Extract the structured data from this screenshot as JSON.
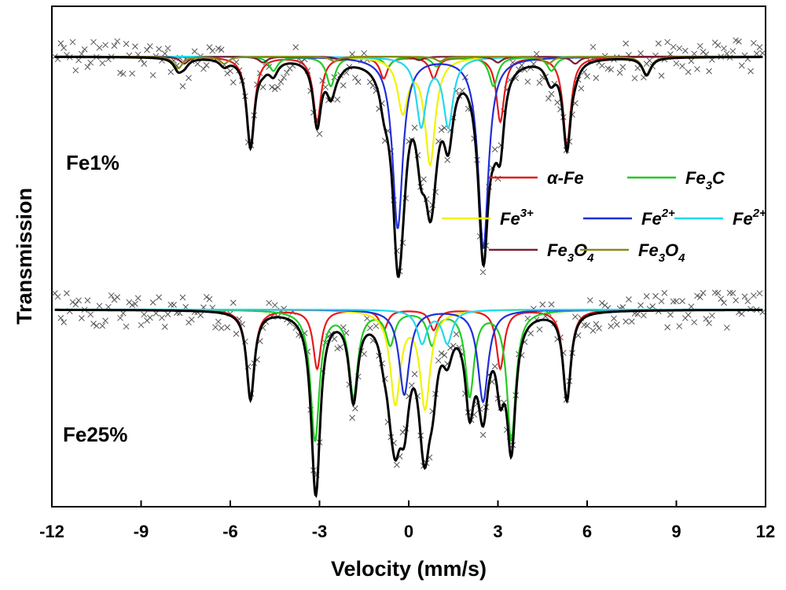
{
  "chart_data": {
    "type": "line",
    "xlabel": "Velocity (mm/s)",
    "ylabel": "Transmission",
    "xlim": [
      -12,
      12
    ],
    "xticks": [
      -12,
      -9,
      -6,
      -3,
      0,
      3,
      6,
      9,
      12
    ],
    "xtick_labels": [
      "-12",
      "-9",
      "-6",
      "-3",
      "0",
      "3",
      "6",
      "9",
      "12"
    ],
    "grid": false,
    "legend_placement": "center-right",
    "legend": [
      {
        "label": "α-Fe",
        "color": "#e41a1c"
      },
      {
        "label": "Fe3C",
        "color": "#22cc22"
      },
      {
        "label": "Fe3+",
        "color": "#f2f200"
      },
      {
        "label": "Fe2+",
        "color": "#1f2fd8"
      },
      {
        "label": "Fe2+",
        "color": "#22d8ee"
      },
      {
        "label": "Fe3O4",
        "color": "#7a1f2f"
      },
      {
        "label": "Fe3O4",
        "color": "#8a8a1a"
      }
    ],
    "legend_display": [
      {
        "main": "α-Fe",
        "sub": "",
        "main2": "",
        "sup": ""
      },
      {
        "main": "Fe",
        "sub": "3",
        "main2": "C",
        "sup": ""
      },
      {
        "main": "Fe",
        "sub": "",
        "main2": "",
        "sup": "3+"
      },
      {
        "main": "Fe",
        "sub": "",
        "main2": "",
        "sup": "2+"
      },
      {
        "main": "Fe",
        "sub": "",
        "main2": "",
        "sup": "2+"
      },
      {
        "main": "Fe",
        "sub": "3",
        "main2": "O",
        "sub2": "4",
        "sup": ""
      },
      {
        "main": "Fe",
        "sub": "3",
        "main2": "O",
        "sub2": "4",
        "sup": ""
      }
    ],
    "panels": [
      {
        "label": "Fe1%",
        "noise": 0.015,
        "components": [
          {
            "name": "α-Fe",
            "color": "#e41a1c",
            "positions": [
              -5.32,
              -3.08,
              -0.84,
              0.84,
              3.08,
              5.32
            ],
            "depths": [
              0.075,
              0.055,
              0.018,
              0.018,
              0.055,
              0.075
            ],
            "width": 0.32
          },
          {
            "name": "Fe3C",
            "color": "#22cc22",
            "positions": [
              -4.55,
              -2.62,
              -0.7,
              0.93,
              2.85,
              4.8
            ],
            "depths": [
              0.012,
              0.025,
              0.008,
              0.008,
              0.025,
              0.012
            ],
            "width": 0.35
          },
          {
            "name": "Fe3+",
            "color": "#f2f200",
            "positions": [
              -0.2,
              0.72
            ],
            "depths": [
              0.045,
              0.09
            ],
            "width": 0.42
          },
          {
            "name": "Fe2+",
            "color": "#1f2fd8",
            "positions": [
              -0.37,
              2.51
            ],
            "depths": [
              0.145,
              0.162
            ],
            "width": 0.42
          },
          {
            "name": "Fe2+",
            "color": "#22d8ee",
            "positions": [
              0.42,
              1.33
            ],
            "depths": [
              0.058,
              0.058
            ],
            "width": 0.4
          },
          {
            "name": "Fe3O4",
            "color": "#7a1f2f",
            "positions": [
              -7.55,
              -4.9,
              -2.3,
              0.35,
              3.0,
              5.6
            ],
            "depths": [
              0.006,
              0.005,
              0.003,
              0.003,
              0.005,
              0.006
            ],
            "width": 0.35
          },
          {
            "name": "Fe3O4",
            "color": "#8a8a1a",
            "positions": [
              -7.75,
              -6.2,
              -2.5,
              1.05,
              4.7,
              8.0
            ],
            "depths": [
              0.01,
              0.006,
              0.004,
              0.004,
              0.006,
              0.015
            ],
            "width": 0.35
          }
        ]
      },
      {
        "label": "Fe25%",
        "noise": 0.015,
        "components": [
          {
            "name": "α-Fe",
            "color": "#e41a1c",
            "positions": [
              -5.32,
              -3.08,
              -0.84,
              0.84,
              3.08,
              5.32
            ],
            "depths": [
              0.075,
              0.05,
              0.017,
              0.017,
              0.05,
              0.075
            ],
            "width": 0.32
          },
          {
            "name": "Fe3C",
            "color": "#22cc22",
            "positions": [
              -3.15,
              -1.86,
              -0.62,
              0.78,
              2.05,
              3.45
            ],
            "depths": [
              0.11,
              0.072,
              0.028,
              0.028,
              0.072,
              0.11
            ],
            "width": 0.36
          },
          {
            "name": "Fe3+",
            "color": "#f2f200",
            "positions": [
              -0.45,
              0.55
            ],
            "depths": [
              0.078,
              0.082
            ],
            "width": 0.42
          },
          {
            "name": "Fe2+",
            "color": "#1f2fd8",
            "positions": [
              -0.15,
              2.5
            ],
            "depths": [
              0.072,
              0.078
            ],
            "width": 0.42
          },
          {
            "name": "Fe2+",
            "color": "#22d8ee",
            "positions": [
              0.45,
              1.3
            ],
            "depths": [
              0.028,
              0.028
            ],
            "width": 0.4
          }
        ]
      }
    ]
  }
}
